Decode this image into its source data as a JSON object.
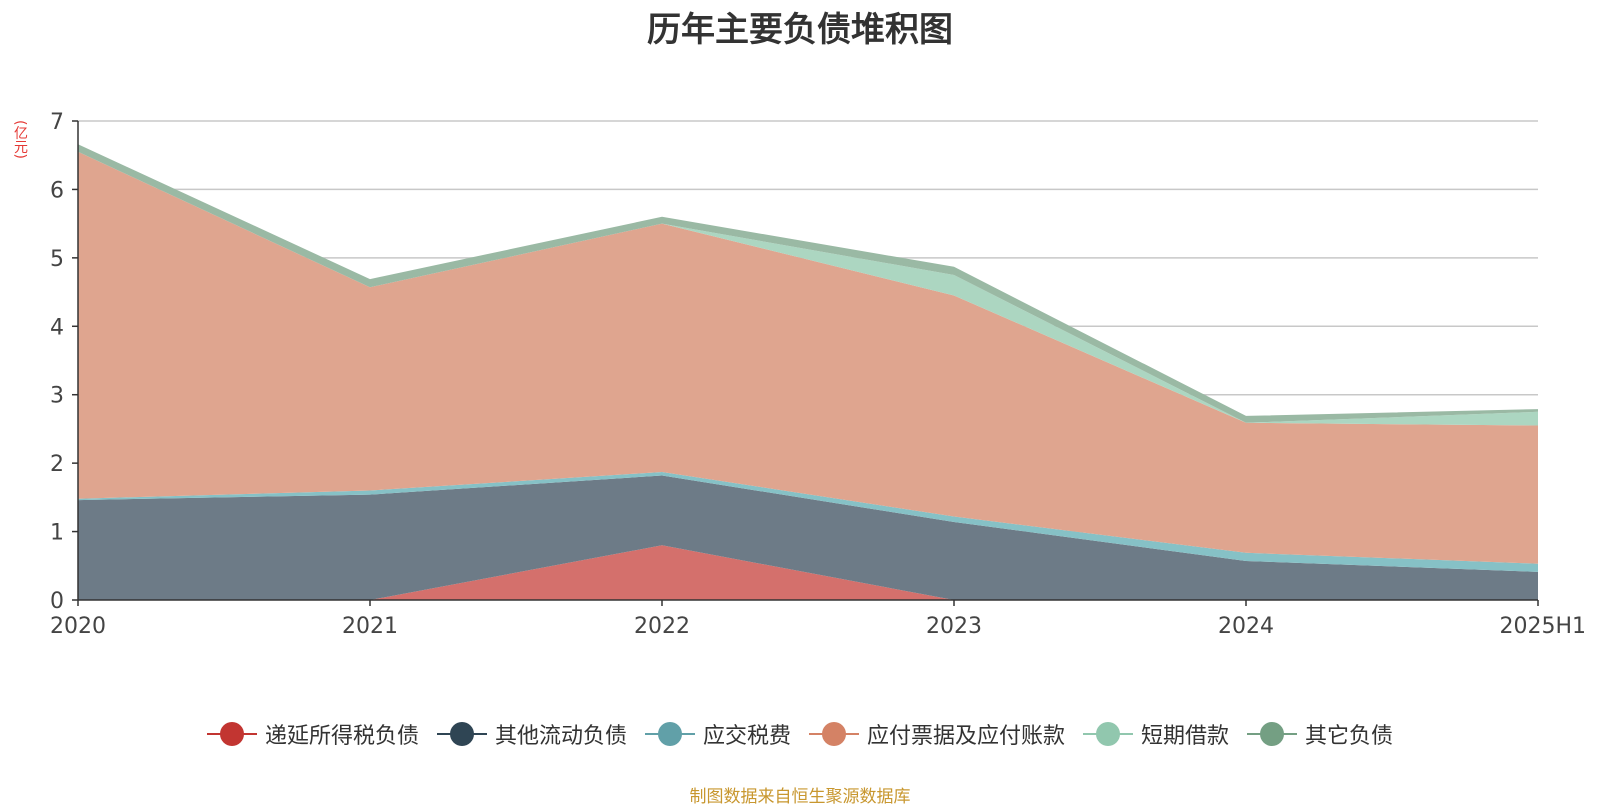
{
  "chart_data": {
    "type": "area",
    "stacked": true,
    "title": "历年主要负债堆积图",
    "unit": "(亿元)",
    "source_note": "制图数据来自恒生聚源数据库",
    "categories": [
      "2020",
      "2021",
      "2022",
      "2023",
      "2024",
      "2025H1"
    ],
    "ylim": [
      0,
      7
    ],
    "yticks": [
      0,
      1,
      2,
      3,
      4,
      5,
      6,
      7
    ],
    "grid": true,
    "legend_position": "bottom",
    "series": [
      {
        "name": "递延所得税负债",
        "color": "#c23531",
        "fill": "#d4706c",
        "values": [
          0,
          0,
          0.8,
          0,
          0,
          0
        ]
      },
      {
        "name": "其他流动负债",
        "color": "#2f4554",
        "fill": "#6d7b87",
        "values": [
          1.46,
          1.54,
          1.02,
          1.14,
          0.57,
          0.41
        ]
      },
      {
        "name": "应交税费",
        "color": "#61a0a8",
        "fill": "#86c1c6",
        "values": [
          0.02,
          0.06,
          0.05,
          0.08,
          0.12,
          0.12
        ]
      },
      {
        "name": "应付票据及应付账款",
        "color": "#d48265",
        "fill": "#dfa58f",
        "values": [
          5.07,
          2.97,
          3.63,
          3.23,
          1.9,
          2.02
        ]
      },
      {
        "name": "短期借款",
        "color": "#91c7ae",
        "fill": "#acd6c1",
        "values": [
          0,
          0,
          0,
          0.3,
          0,
          0.2
        ]
      },
      {
        "name": "其它负债",
        "color": "#749f83",
        "fill": "#9ab9a4",
        "values": [
          0.11,
          0.12,
          0.1,
          0.12,
          0.1,
          0.04
        ]
      }
    ]
  }
}
